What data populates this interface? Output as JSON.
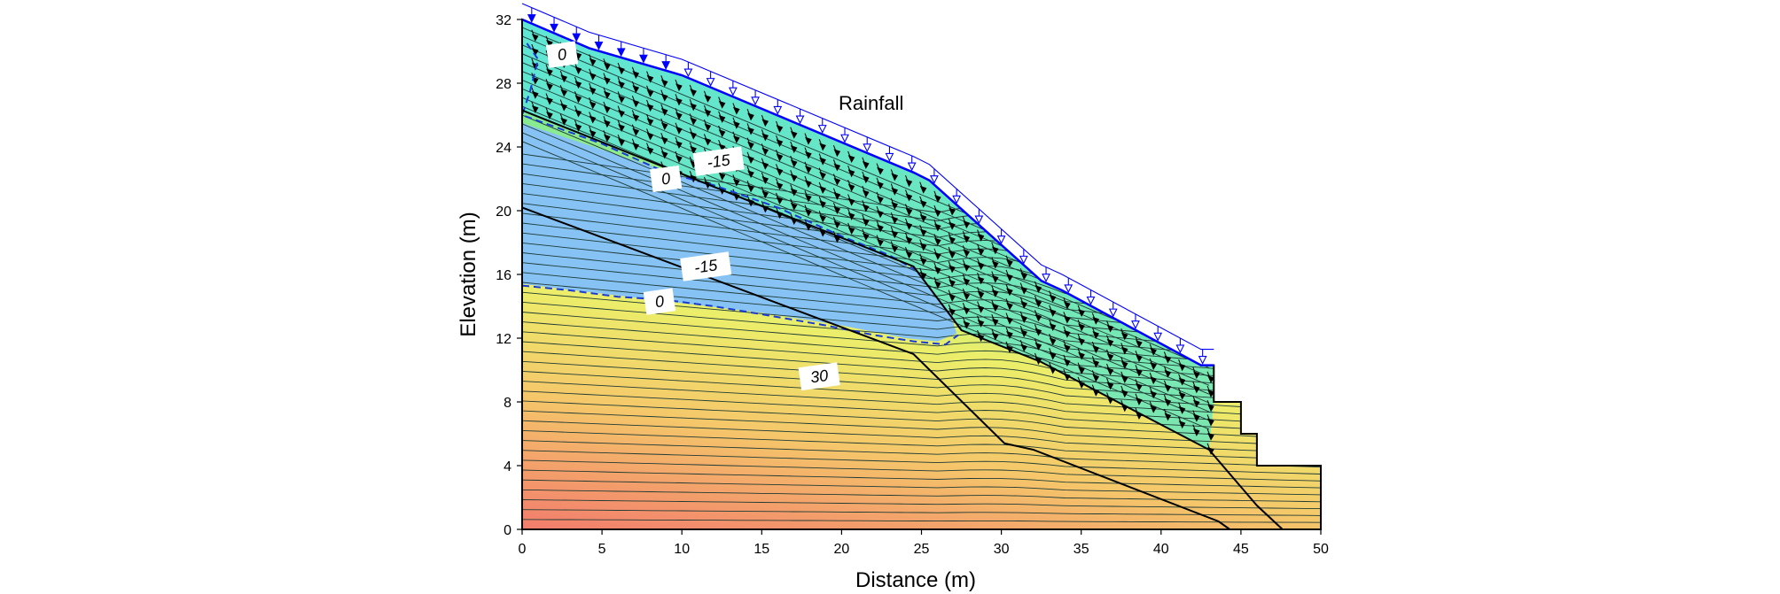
{
  "figure": {
    "xlabel": "Distance (m)",
    "ylabel": "Elevation (m)",
    "annotation": "Rainfall",
    "x_ticks": [
      "0",
      "5",
      "10",
      "15",
      "20",
      "25",
      "30",
      "35",
      "40",
      "45",
      "50"
    ],
    "y_ticks": [
      "0",
      "4",
      "8",
      "12",
      "16",
      "20",
      "24",
      "28",
      "32"
    ],
    "xlim": [
      0,
      50
    ],
    "ylim": [
      0,
      32
    ],
    "contour_labels": [
      {
        "text": "0",
        "x": 2.5,
        "y": 29.8
      },
      {
        "text": "-15",
        "x": 12.3,
        "y": 23.1
      },
      {
        "text": "0",
        "x": 9.0,
        "y": 22.0
      },
      {
        "text": "-15",
        "x": 11.5,
        "y": 16.5
      },
      {
        "text": "0",
        "x": 8.6,
        "y": 14.3
      },
      {
        "text": "30",
        "x": 18.6,
        "y": 9.6
      }
    ],
    "colors": {
      "high_head": "#f27c6c",
      "mid_head": "#f2e96a",
      "low_head": "#69e4a6",
      "negative_zone": "#86c2f4",
      "rainfall_arrows": "#0000ff",
      "water_table": "#1a3ad6"
    }
  }
}
